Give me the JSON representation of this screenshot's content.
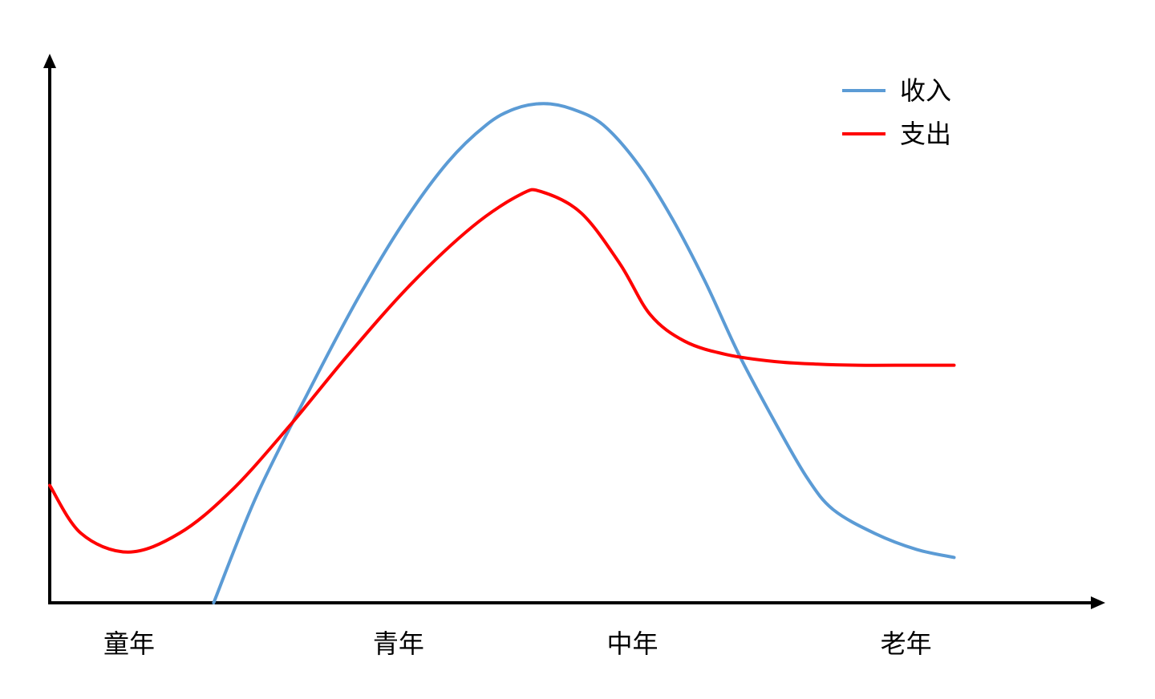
{
  "chart_data": {
    "type": "line",
    "title": "",
    "xlabel": "",
    "ylabel": "",
    "xlim": [
      0,
      100
    ],
    "ylim": [
      0,
      100
    ],
    "grid": false,
    "legend_position": "top-right",
    "categories": [
      {
        "label": "童年",
        "x": 7.6
      },
      {
        "label": "青年",
        "x": 33.4
      },
      {
        "label": "中年",
        "x": 55.8
      },
      {
        "label": "老年",
        "x": 82.0
      }
    ],
    "series": [
      {
        "name": "收入",
        "color": "#5B9BD5",
        "points": [
          [
            15.7,
            0
          ],
          [
            19.8,
            20
          ],
          [
            24.9,
            40
          ],
          [
            29.5,
            57
          ],
          [
            33.8,
            71
          ],
          [
            38.1,
            82.5
          ],
          [
            41.8,
            89.5
          ],
          [
            44.5,
            92.5
          ],
          [
            47.3,
            93.5
          ],
          [
            50.0,
            92.5
          ],
          [
            53.0,
            89.5
          ],
          [
            56.4,
            82
          ],
          [
            59.6,
            72
          ],
          [
            62.8,
            60
          ],
          [
            66.0,
            46.5
          ],
          [
            69.4,
            34
          ],
          [
            72.5,
            23.5
          ],
          [
            75.0,
            17.5
          ],
          [
            79.0,
            13
          ],
          [
            83.0,
            10
          ],
          [
            86.6,
            8.5
          ]
        ]
      },
      {
        "name": "支出",
        "color": "#FF0000",
        "points": [
          [
            0,
            22
          ],
          [
            3.0,
            13
          ],
          [
            7.5,
            9.5
          ],
          [
            12.4,
            13
          ],
          [
            17.4,
            21
          ],
          [
            22.9,
            33
          ],
          [
            28.6,
            46.5
          ],
          [
            34.5,
            59.5
          ],
          [
            40.5,
            70.5
          ],
          [
            45.1,
            76.5
          ],
          [
            47.1,
            77
          ],
          [
            50.9,
            73
          ],
          [
            54.6,
            63.5
          ],
          [
            57.5,
            54
          ],
          [
            60.8,
            49
          ],
          [
            64.8,
            46.5
          ],
          [
            69.4,
            45.2
          ],
          [
            73.5,
            44.7
          ],
          [
            77.4,
            44.5
          ],
          [
            82.5,
            44.5
          ],
          [
            86.6,
            44.5
          ]
        ]
      }
    ]
  }
}
